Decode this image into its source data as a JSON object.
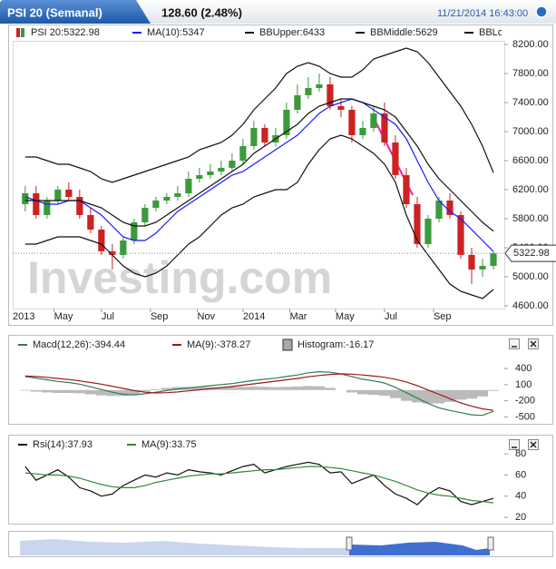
{
  "header": {
    "title": "PSI 20 (Semanal)",
    "quote": "128.60 (2.48%)",
    "timestamp": "11/21/2014 16:43:00"
  },
  "watermark": "Investing.com",
  "chart_data": [
    {
      "type": "candlestick",
      "x": [
        12,
        14,
        16,
        18,
        20,
        22,
        24,
        26,
        28,
        30,
        32,
        34,
        36,
        38,
        40,
        42,
        44,
        46,
        48,
        50,
        52,
        54,
        56,
        58,
        60,
        62,
        64,
        66,
        68,
        70,
        72,
        74,
        76,
        78,
        80,
        82,
        84,
        86,
        88,
        90,
        92,
        94,
        96,
        98
      ],
      "xlim": [
        9.7,
        100
      ],
      "xticks": [
        {
          "value": 0,
          "label": "2013"
        },
        {
          "value": 17.3,
          "label": "May"
        },
        {
          "value": 26,
          "label": "Jul"
        },
        {
          "value": 35,
          "label": "Sep"
        },
        {
          "value": 43.6,
          "label": "Nov"
        },
        {
          "value": 52,
          "label": "2014"
        },
        {
          "value": 60.6,
          "label": "Mar"
        },
        {
          "value": 69,
          "label": "May"
        },
        {
          "value": 78,
          "label": "Jul"
        },
        {
          "value": 87,
          "label": "Sep"
        }
      ],
      "ylim": [
        4562,
        8250
      ],
      "yticks": [
        {
          "value": 4600,
          "label": "4600.00"
        },
        {
          "value": 5000,
          "label": "5000.00"
        },
        {
          "value": 5400,
          "label": "5400.00"
        },
        {
          "value": 5800,
          "label": "5800.00"
        },
        {
          "value": 6200,
          "label": "6200.00"
        },
        {
          "value": 6600,
          "label": "6600.00"
        },
        {
          "value": 7000,
          "label": "7000.00"
        },
        {
          "value": 7400,
          "label": "7400.00"
        },
        {
          "value": 7800,
          "label": "7800.00"
        },
        {
          "value": 8200,
          "label": "8200.00"
        }
      ],
      "price_marker": 5322.98,
      "candles": {
        "name": "PSI 20:5322.98",
        "up_color": "#3b9a3b",
        "down_color": "#cc2222",
        "open": [
          6000,
          6150,
          5850,
          6050,
          6200,
          6100,
          5850,
          5650,
          5350,
          5300,
          5500,
          5750,
          5950,
          6050,
          6100,
          6150,
          6350,
          6400,
          6450,
          6500,
          6600,
          6800,
          7050,
          6850,
          6950,
          7300,
          7500,
          7600,
          7650,
          7350,
          7300,
          6950,
          7050,
          7250,
          6850,
          6400,
          6000,
          5450,
          5800,
          6050,
          5850,
          5300,
          5100,
          5150
        ],
        "high": [
          6250,
          6250,
          6100,
          6250,
          6300,
          6200,
          5950,
          5700,
          5450,
          5550,
          5800,
          6000,
          6100,
          6150,
          6250,
          6450,
          6500,
          6550,
          6600,
          6700,
          6900,
          7150,
          7100,
          7050,
          7400,
          7650,
          7750,
          7800,
          7750,
          7450,
          7350,
          7150,
          7350,
          7400,
          6950,
          6500,
          6100,
          5850,
          6100,
          6150,
          5900,
          5400,
          5250,
          5350
        ],
        "low": [
          5900,
          5800,
          5800,
          6000,
          6050,
          5800,
          5600,
          5300,
          5100,
          5250,
          5450,
          5700,
          5900,
          6000,
          6050,
          6100,
          6300,
          6350,
          6400,
          6450,
          6550,
          6750,
          6800,
          6800,
          6900,
          7250,
          7450,
          7550,
          7300,
          7200,
          6850,
          6900,
          7000,
          6800,
          6350,
          5950,
          5400,
          5400,
          5750,
          5800,
          5250,
          4900,
          5000,
          5100
        ],
        "close": [
          6150,
          5850,
          6050,
          6200,
          6100,
          5850,
          5650,
          5350,
          5300,
          5500,
          5750,
          5950,
          6050,
          6100,
          6150,
          6350,
          6400,
          6450,
          6500,
          6600,
          6800,
          7050,
          6850,
          6950,
          7300,
          7500,
          7600,
          7650,
          7350,
          7300,
          6950,
          7050,
          7250,
          6850,
          6400,
          6000,
          5450,
          5800,
          6050,
          5850,
          5300,
          5100,
          5150,
          5322.98
        ]
      },
      "series": [
        {
          "name": "MA(10):5347",
          "color": "#1a1aff",
          "values": [
            6100,
            6050,
            6000,
            6000,
            6050,
            6050,
            5950,
            5850,
            5700,
            5550,
            5500,
            5500,
            5600,
            5750,
            5900,
            6000,
            6100,
            6200,
            6300,
            6400,
            6450,
            6550,
            6650,
            6750,
            6850,
            6950,
            7100,
            7250,
            7350,
            7400,
            7450,
            7400,
            7300,
            7200,
            7100,
            6900,
            6600,
            6300,
            6050,
            5900,
            5800,
            5650,
            5500,
            5347
          ]
        },
        {
          "name": "BBUpper:6433",
          "color": "#111111",
          "values": [
            6650,
            6650,
            6600,
            6550,
            6550,
            6500,
            6450,
            6350,
            6300,
            6350,
            6400,
            6450,
            6500,
            6550,
            6600,
            6650,
            6750,
            6800,
            6850,
            6950,
            7100,
            7300,
            7450,
            7600,
            7800,
            7900,
            7950,
            7900,
            7800,
            7750,
            7750,
            7850,
            8000,
            8050,
            8100,
            8150,
            8100,
            7950,
            7750,
            7550,
            7350,
            7100,
            6800,
            6433
          ]
        },
        {
          "name": "BBMiddle:5629",
          "color": "#111111",
          "values": [
            6050,
            6050,
            6050,
            6050,
            6050,
            6050,
            6000,
            5950,
            5850,
            5750,
            5700,
            5700,
            5750,
            5850,
            5950,
            6050,
            6150,
            6250,
            6350,
            6450,
            6550,
            6700,
            6800,
            6900,
            7000,
            7100,
            7250,
            7350,
            7400,
            7450,
            7450,
            7400,
            7350,
            7300,
            7200,
            7000,
            6800,
            6550,
            6350,
            6200,
            6050,
            5900,
            5750,
            5629
          ]
        },
        {
          "name": "BBLow",
          "color": "#111111",
          "values": [
            5450,
            5450,
            5500,
            5550,
            5550,
            5550,
            5500,
            5450,
            5300,
            5150,
            5050,
            5000,
            5050,
            5150,
            5300,
            5450,
            5550,
            5700,
            5850,
            5950,
            6000,
            6100,
            6150,
            6200,
            6200,
            6300,
            6550,
            6750,
            6900,
            6950,
            6900,
            6800,
            6700,
            6550,
            6300,
            5850,
            5500,
            5300,
            5100,
            4900,
            4800,
            4750,
            4700,
            4825
          ]
        }
      ]
    },
    {
      "type": "line",
      "x": [
        12,
        14,
        16,
        18,
        20,
        22,
        24,
        26,
        28,
        30,
        32,
        34,
        36,
        38,
        40,
        42,
        44,
        46,
        48,
        50,
        52,
        54,
        56,
        58,
        60,
        62,
        64,
        66,
        68,
        70,
        72,
        74,
        76,
        78,
        80,
        82,
        84,
        86,
        88,
        90,
        92,
        94,
        96,
        98
      ],
      "xlim": [
        9.7,
        100
      ],
      "ylim": [
        -560,
        620
      ],
      "yticks": [
        400,
        100,
        -200,
        -500
      ],
      "histogram": {
        "name": "Histogram:-16.17",
        "color": "#a9a9a9",
        "values": [
          -10,
          -30,
          -45,
          -55,
          -55,
          -60,
          -80,
          -100,
          -110,
          -110,
          -80,
          -30,
          15,
          40,
          55,
          55,
          55,
          55,
          55,
          55,
          60,
          65,
          60,
          55,
          60,
          65,
          75,
          70,
          40,
          0,
          -45,
          -80,
          -90,
          -105,
          -150,
          -200,
          -230,
          -250,
          -250,
          -220,
          -180,
          -160,
          -120,
          -16.17
        ]
      },
      "series": [
        {
          "name": "Macd(12,26):-394.44",
          "color": "#2e7d4f",
          "values": [
            250,
            220,
            190,
            160,
            140,
            110,
            60,
            10,
            -40,
            -80,
            -90,
            -70,
            -40,
            -10,
            20,
            40,
            60,
            80,
            100,
            120,
            150,
            180,
            200,
            220,
            250,
            280,
            320,
            340,
            330,
            300,
            250,
            200,
            170,
            130,
            50,
            -50,
            -150,
            -250,
            -330,
            -380,
            -420,
            -460,
            -470,
            -394.44
          ]
        },
        {
          "name": "MA(9):-378.27",
          "color": "#a01818",
          "values": [
            260,
            250,
            235,
            215,
            195,
            170,
            140,
            110,
            70,
            30,
            -10,
            -40,
            -55,
            -50,
            -35,
            -15,
            5,
            25,
            45,
            65,
            90,
            115,
            140,
            165,
            190,
            215,
            245,
            270,
            290,
            300,
            295,
            280,
            260,
            235,
            200,
            150,
            80,
            0,
            -80,
            -160,
            -240,
            -300,
            -350,
            -378.27
          ]
        }
      ]
    },
    {
      "type": "line",
      "x": [
        12,
        14,
        16,
        18,
        20,
        22,
        24,
        26,
        28,
        30,
        32,
        34,
        36,
        38,
        40,
        42,
        44,
        46,
        48,
        50,
        52,
        54,
        56,
        58,
        60,
        62,
        64,
        66,
        68,
        70,
        72,
        74,
        76,
        78,
        80,
        82,
        84,
        86,
        88,
        90,
        92,
        94,
        96,
        98
      ],
      "xlim": [
        9.7,
        100
      ],
      "ylim": [
        15,
        92
      ],
      "yticks": [
        80,
        60,
        40,
        20
      ],
      "series": [
        {
          "name": "Rsi(14):37.93",
          "color": "#111111",
          "values": [
            68,
            55,
            60,
            65,
            58,
            48,
            45,
            40,
            42,
            50,
            55,
            60,
            58,
            62,
            60,
            65,
            63,
            62,
            60,
            64,
            68,
            70,
            62,
            65,
            68,
            70,
            72,
            70,
            62,
            63,
            52,
            56,
            60,
            50,
            42,
            38,
            32,
            42,
            48,
            45,
            35,
            32,
            35,
            37.93
          ]
        },
        {
          "name": "MA(9):33.75",
          "color": "#2e8b3e",
          "values": [
            62,
            61,
            60,
            60,
            59,
            57,
            54,
            51,
            49,
            48,
            48,
            50,
            53,
            55,
            57,
            59,
            60,
            61,
            61,
            62,
            63,
            64,
            65,
            65,
            66,
            67,
            68,
            68,
            67,
            66,
            64,
            62,
            60,
            57,
            54,
            50,
            46,
            43,
            41,
            40,
            38,
            36,
            35,
            33.75
          ]
        }
      ]
    }
  ]
}
